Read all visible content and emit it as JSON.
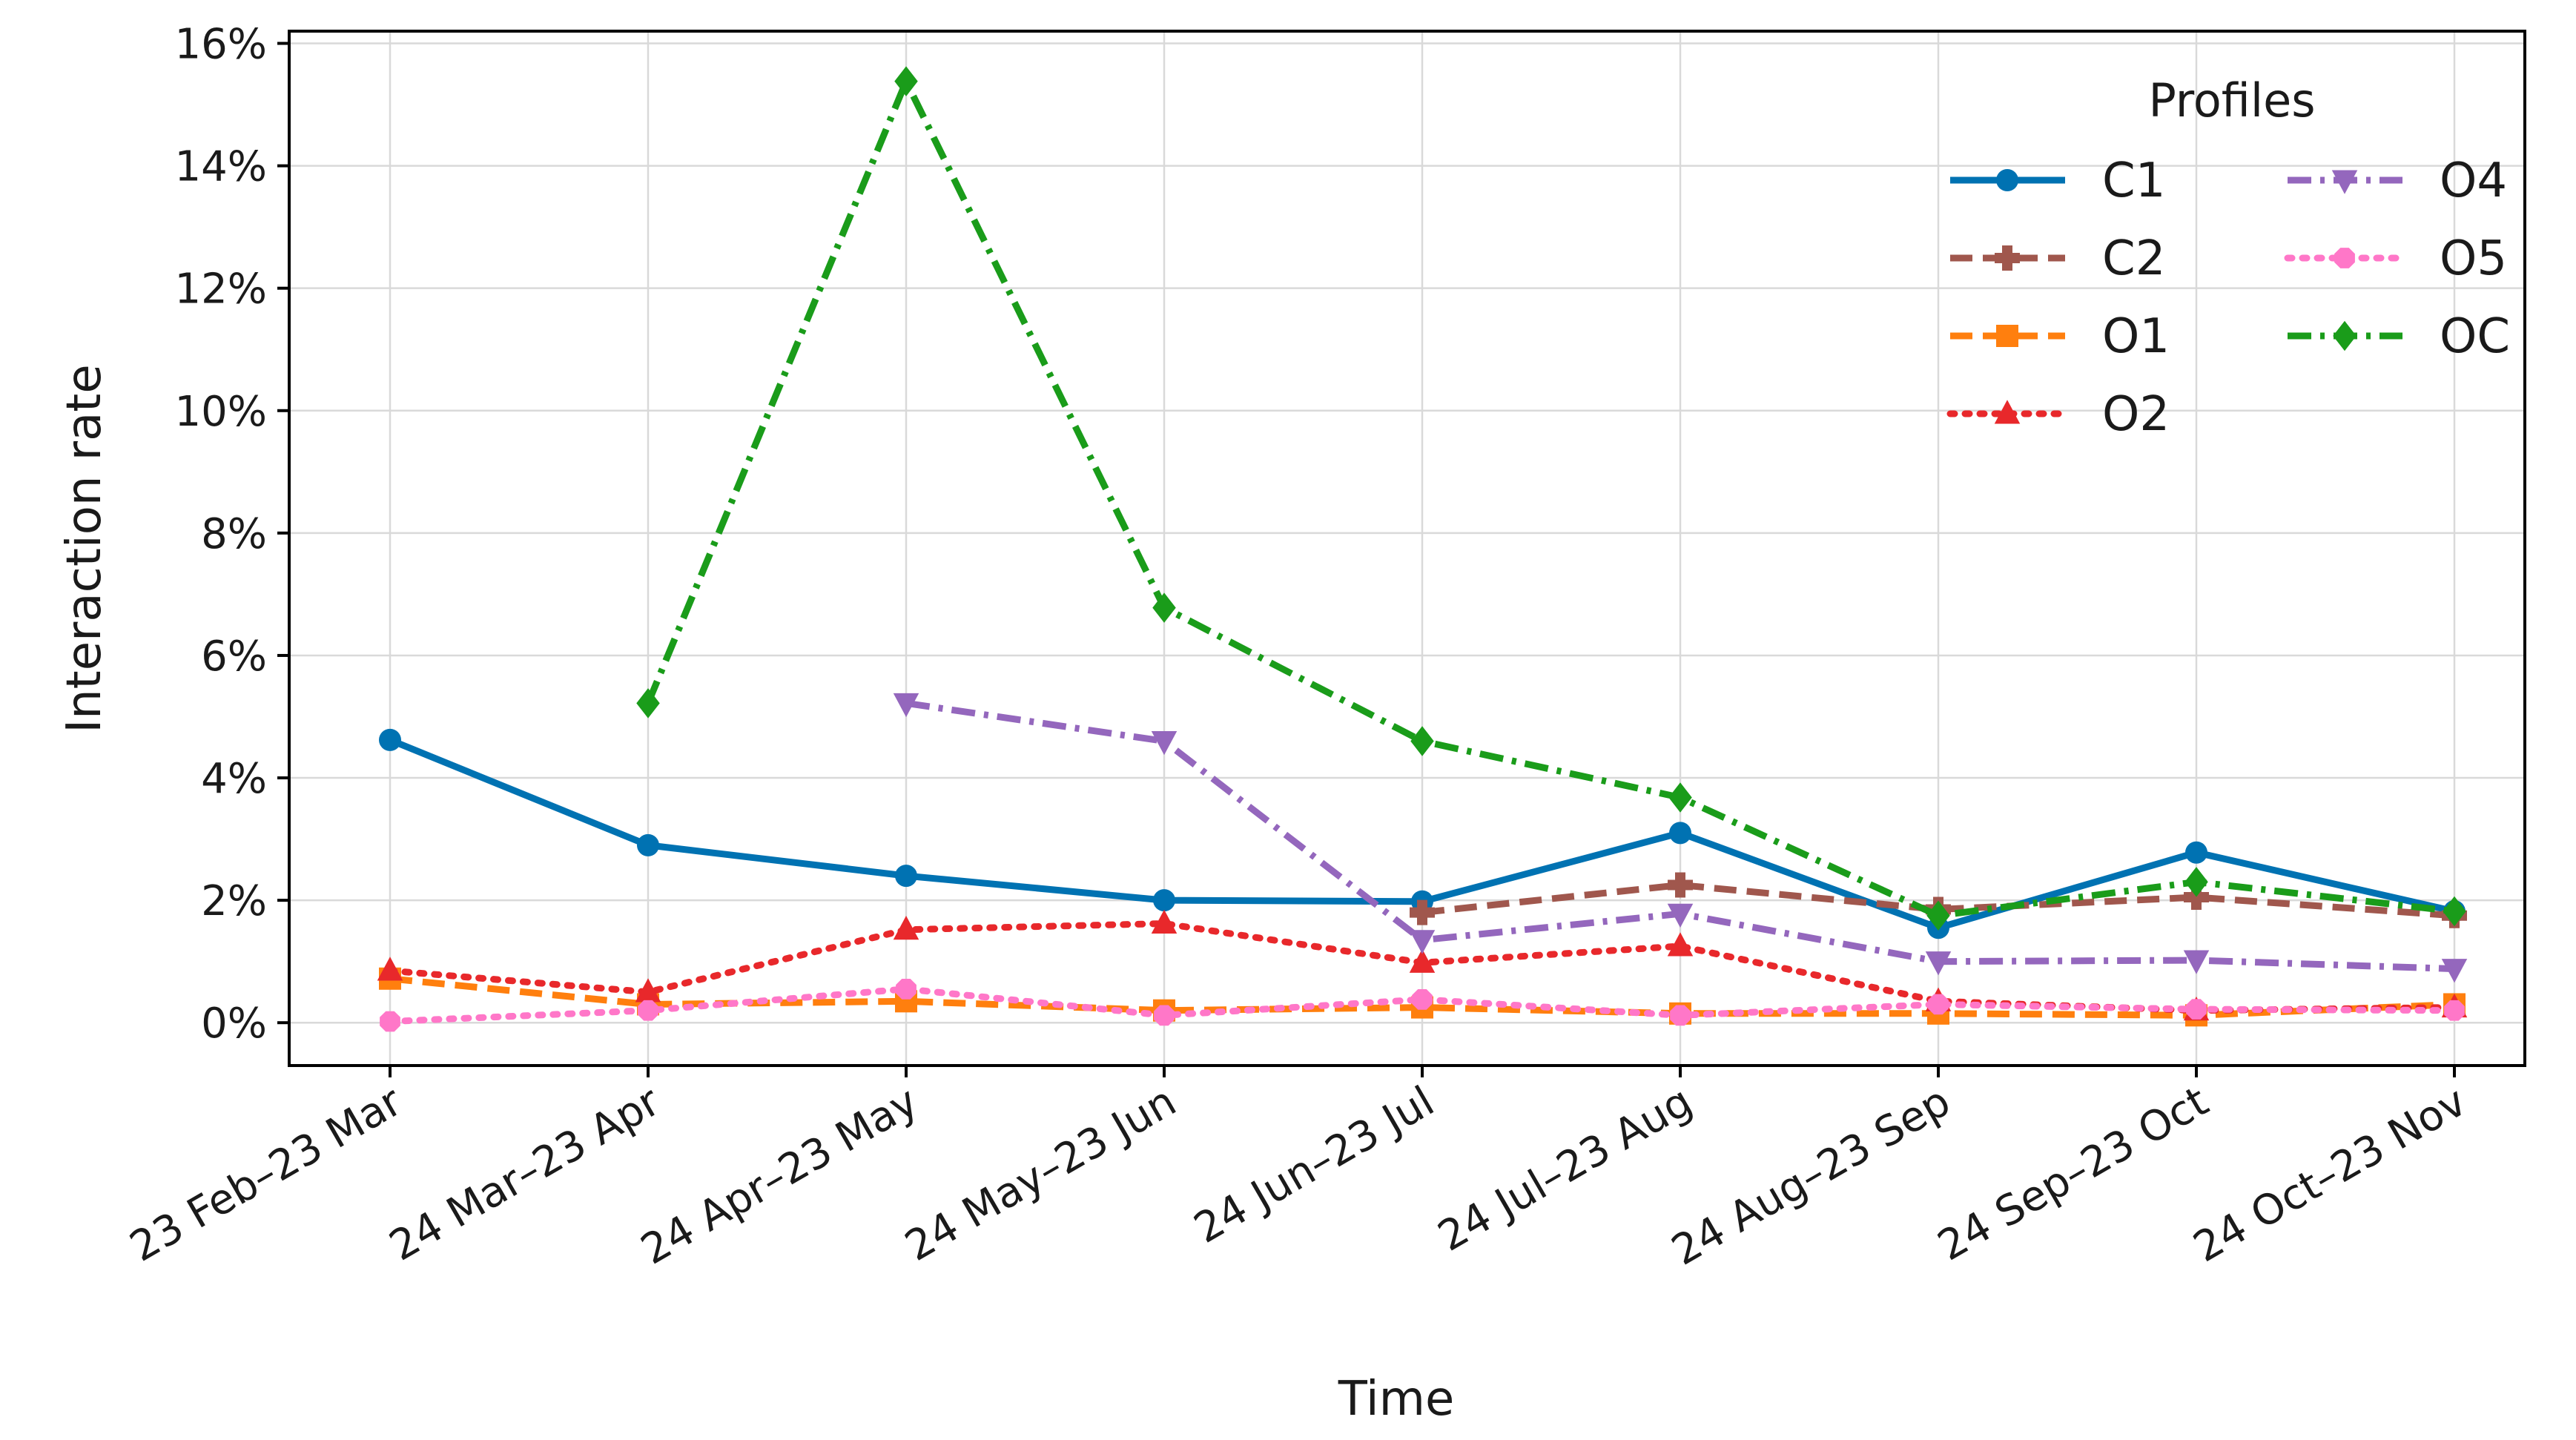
{
  "chart_data": {
    "type": "line",
    "xlabel": "Time",
    "ylabel": "Interaction rate",
    "categories": [
      "23 Feb–23 Mar",
      "24 Mar–23 Apr",
      "24 Apr–23 May",
      "24 May–23 Jun",
      "24 Jun–23 Jul",
      "24 Jul–23 Aug",
      "24 Aug–23 Sep",
      "24 Sep–23 Oct",
      "24 Oct–23 Nov"
    ],
    "ylim": [
      -0.7,
      16.2
    ],
    "yticks": [
      0,
      2,
      4,
      6,
      8,
      10,
      12,
      14,
      16
    ],
    "ytick_labels": [
      "0%",
      "2%",
      "4%",
      "6%",
      "8%",
      "10%",
      "12%",
      "14%",
      "16%"
    ],
    "grid": true,
    "legend": {
      "title": "Profiles",
      "placement": "top-right",
      "columns": 2
    },
    "series": [
      {
        "name": "C1",
        "color": "#0072b2",
        "marker": "circle",
        "dash": "solid",
        "values": [
          4.62,
          2.9,
          2.4,
          2.0,
          1.98,
          3.1,
          1.55,
          2.78,
          1.82
        ]
      },
      {
        "name": "C2",
        "color": "#a0574d",
        "marker": "plus",
        "dash": "dashed",
        "values": [
          null,
          null,
          null,
          null,
          1.8,
          2.25,
          1.85,
          2.05,
          1.75
        ]
      },
      {
        "name": "O1",
        "color": "#ff7f0e",
        "marker": "square",
        "dash": "dashed",
        "values": [
          0.72,
          0.3,
          0.35,
          0.2,
          0.25,
          0.15,
          0.15,
          0.12,
          0.3
        ]
      },
      {
        "name": "O2",
        "color": "#e8282b",
        "marker": "triangle-up",
        "dash": "dotted",
        "values": [
          0.85,
          0.5,
          1.52,
          1.62,
          0.98,
          1.25,
          0.35,
          0.2,
          0.25
        ]
      },
      {
        "name": "O4",
        "color": "#9467bd",
        "marker": "triangle-down",
        "dash": "dashdot",
        "values": [
          null,
          null,
          5.22,
          4.6,
          1.35,
          1.78,
          1.0,
          1.02,
          0.88
        ]
      },
      {
        "name": "O5",
        "color": "#ff77c8",
        "marker": "octagon",
        "dash": "dotted",
        "values": [
          0.02,
          0.2,
          0.55,
          0.12,
          0.38,
          0.12,
          0.3,
          0.22,
          0.2
        ]
      },
      {
        "name": "OC",
        "color": "#1a9c1a",
        "marker": "diamond",
        "dash": "dashdot",
        "values": [
          null,
          5.22,
          15.38,
          6.78,
          4.6,
          3.68,
          1.75,
          2.3,
          1.82
        ]
      }
    ]
  }
}
